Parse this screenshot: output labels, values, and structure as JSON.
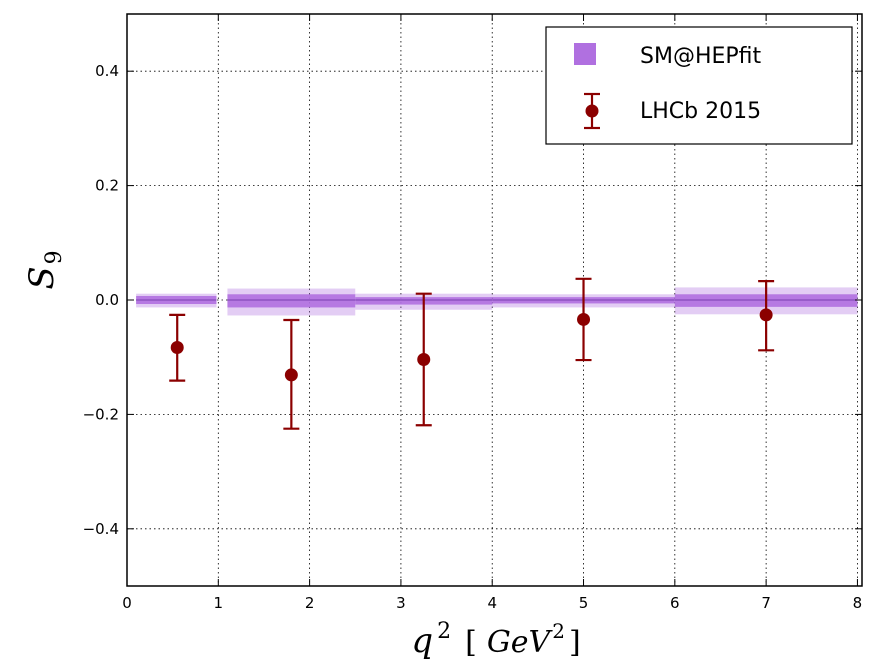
{
  "chart_data": {
    "type": "scatter",
    "xlabel": {
      "var": "q",
      "exp": "2",
      "unit": "GeV",
      "unit_exp": "2"
    },
    "ylabel": {
      "var": "S",
      "sub": "9"
    },
    "xlim": [
      0,
      8.05
    ],
    "ylim": [
      -0.5,
      0.5
    ],
    "x_ticks": [
      0,
      1,
      2,
      3,
      4,
      5,
      6,
      7,
      8
    ],
    "x_tick_labels": [
      "0",
      "1",
      "2",
      "3",
      "4",
      "5",
      "6",
      "7",
      "8"
    ],
    "y_ticks": [
      -0.4,
      -0.2,
      0.0,
      0.2,
      0.4
    ],
    "y_tick_labels": [
      "−0.4",
      "−0.2",
      "0.0",
      "0.2",
      "0.4"
    ],
    "grid": true,
    "legend_position": "top-right",
    "series": [
      {
        "name": "SM@HEPfit",
        "kind": "band",
        "color": "#b070e0",
        "bins": [
          {
            "x0": 0.1,
            "x1": 0.98,
            "center": 0.0,
            "inner": [
              -0.007,
              0.007
            ],
            "outer": [
              -0.013,
              0.011
            ]
          },
          {
            "x0": 1.1,
            "x1": 2.5,
            "center": 0.0,
            "inner": [
              -0.013,
              0.01
            ],
            "outer": [
              -0.027,
              0.02
            ]
          },
          {
            "x0": 2.5,
            "x1": 4.0,
            "center": 0.0,
            "inner": [
              -0.008,
              0.005
            ],
            "outer": [
              -0.017,
              0.011
            ]
          },
          {
            "x0": 4.0,
            "x1": 6.0,
            "center": 0.0,
            "inner": [
              -0.006,
              0.005
            ],
            "outer": [
              -0.013,
              0.01
            ]
          },
          {
            "x0": 6.0,
            "x1": 8.0,
            "center": 0.0,
            "inner": [
              -0.012,
              0.01
            ],
            "outer": [
              -0.025,
              0.022
            ]
          }
        ]
      },
      {
        "name": "LHCb 2015",
        "kind": "errorbar",
        "color": "#8b0000",
        "points": [
          {
            "x": 0.55,
            "y": -0.083,
            "lo": -0.141,
            "hi": -0.026
          },
          {
            "x": 1.8,
            "y": -0.131,
            "lo": -0.225,
            "hi": -0.035
          },
          {
            "x": 3.25,
            "y": -0.104,
            "lo": -0.219,
            "hi": 0.011
          },
          {
            "x": 5.0,
            "y": -0.034,
            "lo": -0.105,
            "hi": 0.037
          },
          {
            "x": 7.0,
            "y": -0.026,
            "lo": -0.088,
            "hi": 0.033
          }
        ]
      }
    ]
  }
}
